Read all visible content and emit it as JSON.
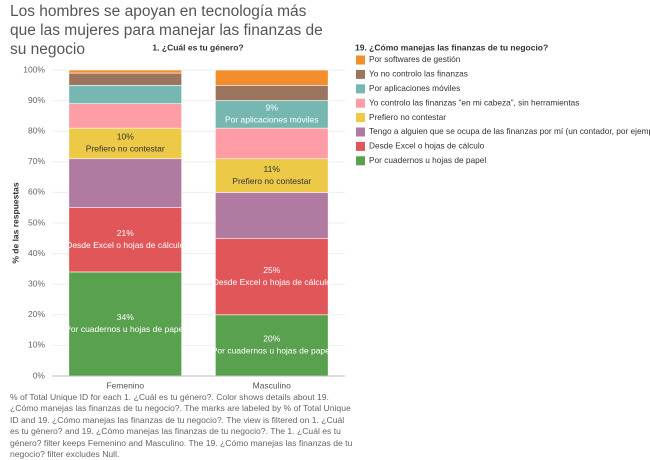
{
  "chart_data": {
    "type": "stacked_bar",
    "title": "Los hombres se apoyan en tecnología más que las mujeres para manejar las finanzas de su negocio",
    "column_header": "1. ¿Cuál es tu género?",
    "y_label": "% de las respuestas",
    "legend_title": "19. ¿Cómo manejas las finanzas de tu negocio?",
    "note": "% of Total Unique ID for each 1. ¿Cuál es tu género?.  Color shows details about 19. ¿Cómo manejas las finanzas de tu negocio?.  The marks are labeled by % of Total Unique ID and 19. ¿Cómo manejas las finanzas de tu negocio?. The view is filtered on 1. ¿Cuál es tu género? and 19. ¿Cómo manejas las finanzas de tu negocio?. The 1. ¿Cuál es tu género? filter keeps Femenino and Masculino. The 19. ¿Cómo manejas las finanzas de tu negocio? filter excludes Null.",
    "categories": [
      "Femenino",
      "Masculino"
    ],
    "series": [
      {
        "name": "Por cuadernos u hojas de papel",
        "color": "#59a14f",
        "values": [
          34,
          20
        ],
        "value_labels": [
          "34%",
          "20%"
        ]
      },
      {
        "name": "Desde Excel o hojas de cálculo",
        "color": "#e15759",
        "values": [
          21,
          25
        ],
        "value_labels": [
          "21%",
          "25%"
        ]
      },
      {
        "name": "Tengo a alguien que se ocupa de las finanzas por mí (un contador, por ejemplo)",
        "color": "#b07aa1",
        "values": [
          16,
          15
        ]
      },
      {
        "name": "Prefiero no contestar",
        "color": "#edc948",
        "values": [
          10,
          11
        ],
        "value_labels": [
          "10%",
          "11%"
        ]
      },
      {
        "name": "Yo controlo las finanzas “en mi cabeza”, sin herramientas",
        "color": "#ff9da7",
        "values": [
          8,
          10
        ]
      },
      {
        "name": "Por aplicaciones móviles",
        "color": "#76b7b2",
        "values": [
          6,
          9
        ],
        "value_labels": [
          null,
          "9%"
        ]
      },
      {
        "name": "Yo no controlo las finanzas",
        "color": "#9c755f",
        "values": [
          4,
          5
        ]
      },
      {
        "name": "Por softwares de gestión",
        "color": "#f28e2b",
        "values": [
          1,
          5
        ]
      }
    ],
    "ylim": [
      0,
      100
    ],
    "yticks": [
      {
        "value": 0,
        "label": "0%"
      },
      {
        "value": 10,
        "label": "10%"
      },
      {
        "value": 20,
        "label": "20%"
      },
      {
        "value": 30,
        "label": "30%"
      },
      {
        "value": 40,
        "label": "40%"
      },
      {
        "value": 50,
        "label": "50%"
      },
      {
        "value": 60,
        "label": "60%"
      },
      {
        "value": 70,
        "label": "70%"
      },
      {
        "value": 80,
        "label": "80%"
      },
      {
        "value": 90,
        "label": "90%"
      },
      {
        "value": 100,
        "label": "100%"
      }
    ],
    "grid": true
  }
}
